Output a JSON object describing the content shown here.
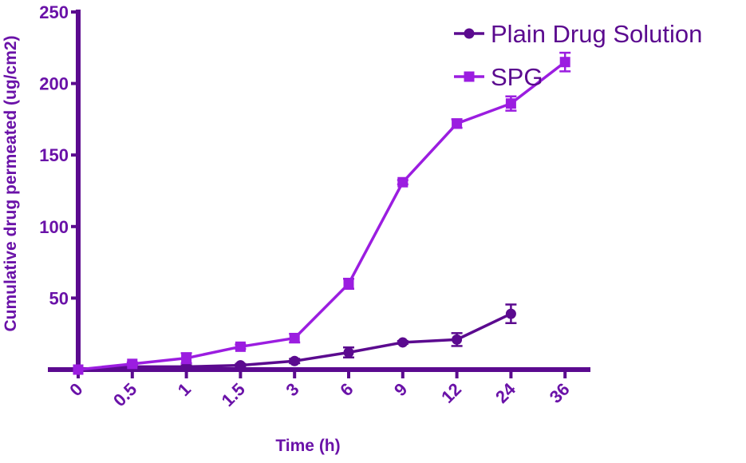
{
  "chart_data": {
    "type": "line",
    "title": "",
    "xlabel": "Time (h)",
    "ylabel": "Cumulative drug permeated (ug/cm2)",
    "categories": [
      "0",
      "0.5",
      "1",
      "1.5",
      "3",
      "6",
      "9",
      "12",
      "24",
      "36"
    ],
    "ylim": [
      0,
      250
    ],
    "yticks": [
      50,
      100,
      150,
      200,
      250
    ],
    "grid": false,
    "legend_position": "top-right",
    "series": [
      {
        "name": "Plain Drug Solution",
        "marker": "circle",
        "color": "#5b0a8f",
        "values": [
          0,
          2,
          2,
          3,
          6,
          12,
          19,
          21,
          39,
          null
        ],
        "errors": [
          0,
          1,
          1,
          1,
          1.5,
          3.5,
          1,
          4.5,
          6.5,
          null
        ]
      },
      {
        "name": "SPG",
        "marker": "square",
        "color": "#9b1de0",
        "values": [
          0,
          4,
          8,
          16,
          22,
          60,
          131,
          172,
          186,
          215
        ],
        "errors": [
          0,
          1,
          3.5,
          1.5,
          3,
          3.5,
          1.5,
          3,
          5,
          6.5
        ]
      }
    ]
  }
}
